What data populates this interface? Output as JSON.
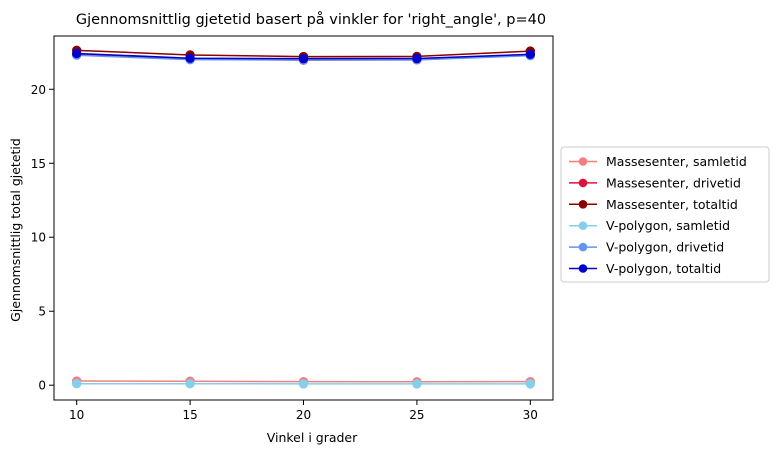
{
  "chart_data": {
    "type": "line",
    "title": "Gjennomsnittlig gjetetid basert på vinkler for 'right_angle', p=40",
    "xlabel": "Vinkel i grader",
    "ylabel": "Gjennomsnittlig total gjetetid",
    "x": [
      10,
      15,
      20,
      25,
      30
    ],
    "xlim": [
      9.0,
      31.0
    ],
    "ylim": [
      -1.0,
      23.6
    ],
    "xticks": [
      10,
      15,
      20,
      25,
      30
    ],
    "yticks": [
      0,
      5,
      10,
      15,
      20
    ],
    "grid": false,
    "legend_position": "outside right",
    "series": [
      {
        "name": "Massesenter, samletid",
        "color": "#f08080",
        "values": [
          0.28,
          0.27,
          0.24,
          0.23,
          0.24
        ]
      },
      {
        "name": "Massesenter, drivetid",
        "color": "#dc143c",
        "values": [
          22.35,
          22.05,
          21.97,
          21.99,
          22.34
        ]
      },
      {
        "name": "Massesenter, totaltid",
        "color": "#8b0000",
        "values": [
          22.63,
          22.32,
          22.21,
          22.22,
          22.58
        ]
      },
      {
        "name": "V-polygon, samletid",
        "color": "#87ceeb",
        "values": [
          0.1,
          0.1,
          0.09,
          0.09,
          0.09
        ]
      },
      {
        "name": "V-polygon, drivetid",
        "color": "#6495ed",
        "values": [
          22.3,
          22.0,
          21.98,
          21.99,
          22.27
        ]
      },
      {
        "name": "V-polygon, totaltid",
        "color": "#0000cd",
        "values": [
          22.42,
          22.1,
          22.07,
          22.08,
          22.36
        ]
      }
    ]
  }
}
